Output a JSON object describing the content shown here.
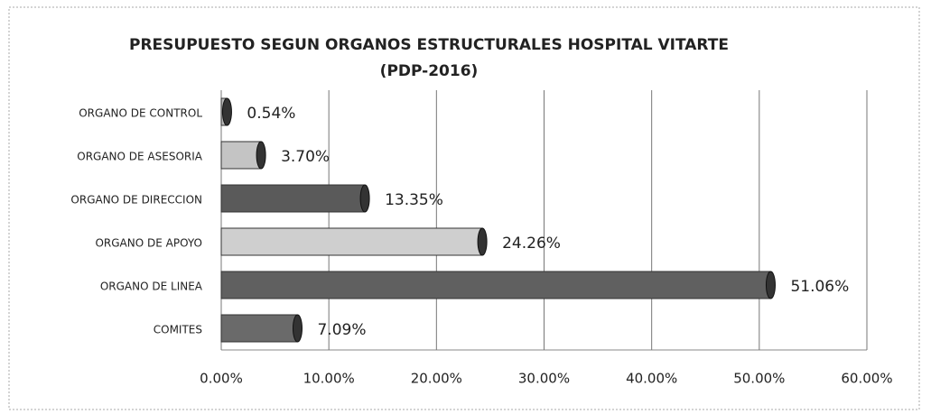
{
  "chart_data": {
    "type": "bar",
    "orientation": "horizontal",
    "title": "PRESUPUESTO SEGUN ORGANOS  ESTRUCTURALES HOSPITAL VITARTE (PDP-2016)",
    "categories": [
      "ORGANO DE CONTROL",
      "ORGANO DE ASESORIA",
      "ORGANO DE DIRECCION",
      "ORGANO DE APOYO",
      "ORGANO DE LINEA",
      "COMITES"
    ],
    "values": [
      0.54,
      3.7,
      13.35,
      24.26,
      51.06,
      7.09
    ],
    "value_labels": [
      "0.54%",
      "3.70%",
      "13.35%",
      "24.26%",
      "51.06%",
      "7.09%"
    ],
    "colors": [
      "#b8b8b8",
      "#c4c4c4",
      "#5a5a5a",
      "#cfcfcf",
      "#606060",
      "#6a6a6a"
    ],
    "xlim": [
      0,
      60
    ],
    "xticks": [
      {
        "value": 0,
        "label": "0.00%"
      },
      {
        "value": 10,
        "label": "10.00%"
      },
      {
        "value": 20,
        "label": "20.00%"
      },
      {
        "value": 30,
        "label": "30.00%"
      },
      {
        "value": 40,
        "label": "40.00%"
      },
      {
        "value": 50,
        "label": "50.00%"
      },
      {
        "value": 60,
        "label": "60.00%"
      }
    ],
    "grid": true
  }
}
